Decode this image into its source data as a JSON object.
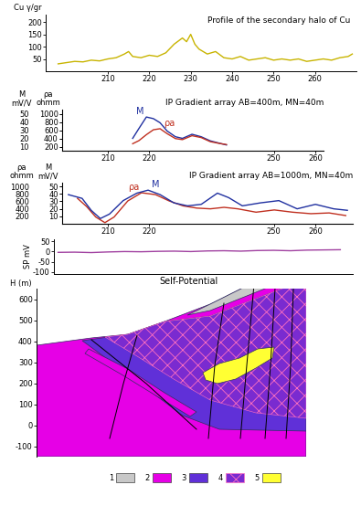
{
  "chart_data": [
    {
      "type": "line",
      "title": "Profile of the secondary halo of Cu",
      "y_label": "Cu γ/gr",
      "color": "#c8b400",
      "x": [
        198,
        200,
        202,
        204,
        206,
        208,
        210,
        212,
        214,
        215,
        216,
        218,
        220,
        222,
        224,
        226,
        228,
        229,
        230,
        231,
        232,
        234,
        236,
        238,
        240,
        242,
        244,
        246,
        248,
        250,
        252,
        254,
        256,
        258,
        260,
        262,
        264,
        266,
        268,
        269
      ],
      "values": [
        30,
        35,
        40,
        38,
        45,
        42,
        50,
        55,
        70,
        80,
        60,
        55,
        65,
        60,
        75,
        110,
        135,
        120,
        150,
        110,
        90,
        70,
        80,
        55,
        50,
        60,
        45,
        50,
        55,
        45,
        50,
        45,
        50,
        40,
        45,
        50,
        45,
        55,
        60,
        70
      ],
      "xlim": [
        195,
        270
      ],
      "xticks": [
        210,
        220,
        230,
        240,
        250,
        260
      ],
      "ylim": [
        0,
        230
      ],
      "yticks": [
        50,
        100,
        150,
        200
      ]
    },
    {
      "type": "line",
      "title": "IP Gradient array AB=400m, MN=40m",
      "y_label": "M\nmV/V",
      "y2_label": "ρa\nohmm",
      "xlim": [
        199,
        262
      ],
      "xticks": [
        210,
        220,
        250,
        260
      ],
      "ylim": [
        5,
        55
      ],
      "yticks": [
        10,
        20,
        30,
        40,
        50
      ],
      "y2lim": [
        100,
        1100
      ],
      "y2ticks": [
        200,
        400,
        600,
        800,
        1000
      ],
      "series": [
        {
          "name": "M",
          "color": "#2030a0",
          "x": [
            216,
            217.5,
            219.3,
            221,
            222.6,
            224.3,
            226.3,
            228,
            230.3,
            232.5,
            234.7,
            237,
            238.6
          ],
          "values": [
            20,
            32,
            46,
            44,
            39,
            29,
            22,
            20,
            25,
            22,
            17,
            14,
            12
          ]
        },
        {
          "name": "ρa",
          "color": "#c03020",
          "axis": "y2",
          "x": [
            216,
            217.5,
            219.3,
            221,
            222.6,
            224.3,
            226.3,
            228,
            230.3,
            232.5,
            234.7,
            237,
            238.6
          ],
          "values": [
            270,
            345,
            490,
            610,
            635,
            515,
            395,
            370,
            465,
            420,
            320,
            275,
            250
          ]
        }
      ]
    },
    {
      "type": "line",
      "title": "IP Gradient array AB=1000m, MN=40m",
      "y_label": "ρa\nohmm",
      "y2_label": "M\nmV/V",
      "xlim": [
        199,
        269
      ],
      "xticks": [
        210,
        220,
        250,
        260
      ],
      "ylim": [
        0,
        1100
      ],
      "yticks": [
        200,
        400,
        600,
        800,
        1000
      ],
      "y2lim": [
        0,
        55
      ],
      "y2ticks": [
        10,
        20,
        30,
        40,
        50
      ],
      "series": [
        {
          "name": "ρa",
          "color": "#c03020",
          "x": [
            202.7,
            204.9,
            207.1,
            209.3,
            211.5,
            214.8,
            218.1,
            221.5,
            224.8,
            228.1,
            231.4,
            234.7,
            238,
            241.3,
            245.7,
            250.1,
            254.5,
            258.9,
            263.3,
            267.3
          ],
          "values": [
            680,
            460,
            180,
            30,
            180,
            610,
            830,
            780,
            610,
            480,
            420,
            400,
            440,
            400,
            310,
            370,
            310,
            270,
            290,
            220
          ]
        },
        {
          "name": "M",
          "color": "#2030a0",
          "axis": "y2",
          "x": [
            200.5,
            203.8,
            206,
            208.2,
            210.4,
            213.7,
            217,
            219.7,
            222.6,
            225.9,
            229.2,
            232.5,
            236.4,
            239.1,
            242.4,
            246.8,
            251.2,
            255.6,
            260,
            264.4,
            267.7
          ],
          "values": [
            39,
            34,
            18,
            7,
            13,
            31,
            41,
            45,
            39,
            28,
            24,
            26,
            41,
            35,
            24,
            28,
            31,
            20,
            26,
            20,
            18
          ]
        }
      ]
    },
    {
      "type": "line",
      "title": "Self-Potential",
      "y_label": "SP mV",
      "color": "#a040a0",
      "x": [
        198,
        202,
        206,
        210,
        214,
        218,
        222,
        226,
        230,
        234,
        238,
        242,
        246,
        250,
        254,
        258,
        262,
        266
      ],
      "values": [
        -4,
        -3,
        -5,
        -2,
        0,
        -1,
        1,
        2,
        0,
        3,
        4,
        2,
        5,
        6,
        4,
        7,
        8,
        9
      ],
      "xlim": [
        197,
        269
      ],
      "ylim": [
        -110,
        60
      ],
      "yticks": [
        50,
        0,
        -50,
        -100
      ],
      "tick_labels": "y"
    },
    {
      "type": "section",
      "y_label": "H (m)",
      "ylim": [
        -150,
        650
      ],
      "yticks": [
        -100,
        0,
        100,
        200,
        300,
        400,
        500,
        600
      ],
      "tick_labels": "y",
      "units": [
        {
          "label": "1",
          "color": "#c8c8c8"
        },
        {
          "label": "2",
          "color": "#e600e6"
        },
        {
          "label": "3",
          "color": "#6030d8"
        },
        {
          "label": "4",
          "color": "#7a2bd0",
          "marker": "x"
        },
        {
          "label": "5",
          "color": "#ffff33"
        }
      ]
    }
  ]
}
